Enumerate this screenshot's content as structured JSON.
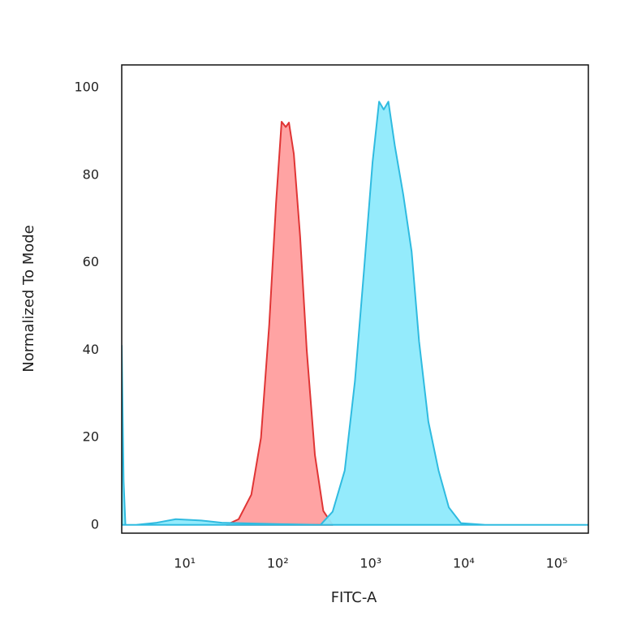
{
  "chart_data": {
    "type": "area",
    "x_label": "FITC-A",
    "y_label": "Normalized To Mode",
    "x_scale": "log",
    "xlim": [
      2.1,
      219000
    ],
    "ylim": [
      -1.9,
      105.2
    ],
    "xticks": [
      {
        "value": 10,
        "label": "10¹"
      },
      {
        "value": 100,
        "label": "10²"
      },
      {
        "value": 1000,
        "label": "10³"
      },
      {
        "value": 10000,
        "label": "10⁴"
      },
      {
        "value": 100000,
        "label": "10⁵"
      }
    ],
    "yticks": [
      0,
      20,
      40,
      60,
      80,
      100
    ],
    "series": [
      {
        "color": "#e03535",
        "fill": "#ff9e9e",
        "x": [
          28,
          38,
          52,
          66,
          81,
          96,
          110,
          122,
          132,
          149,
          174,
          205,
          251,
          309,
          389
        ],
        "values": [
          0,
          1.3,
          6.9,
          19.9,
          45.8,
          73.7,
          92.2,
          91,
          92,
          84.8,
          66,
          40,
          16,
          3.2,
          0
        ]
      },
      {
        "color": "#2fbbe0",
        "fill": "#8eeafc",
        "x": [
          2.1,
          2.1,
          2.2,
          2.3,
          3,
          5,
          8,
          15,
          25,
          100,
          288,
          389,
          525,
          676,
          851,
          1047,
          1230,
          1380,
          1549,
          1820,
          2239,
          2754,
          3311,
          4169,
          5370,
          6918,
          9333,
          17000,
          219000
        ],
        "values": [
          0,
          41,
          10,
          0,
          0,
          0.5,
          1.3,
          1,
          0.5,
          0.2,
          0,
          3,
          12.4,
          32.8,
          58.8,
          83,
          96.8,
          95,
          96.8,
          86.6,
          75.5,
          62.5,
          42,
          23.6,
          12.4,
          4,
          0.4,
          0,
          0
        ]
      }
    ]
  }
}
